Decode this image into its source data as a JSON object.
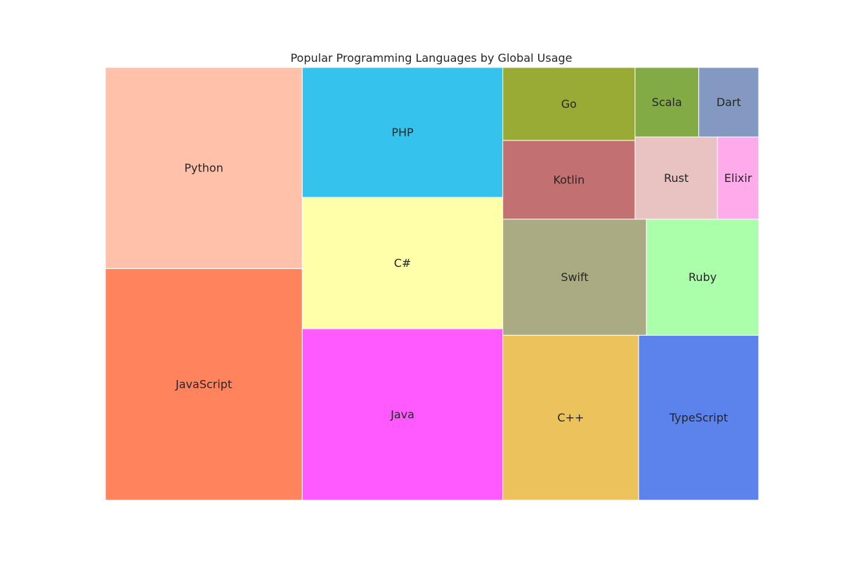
{
  "chart_data": {
    "type": "treemap",
    "title": "Popular Programming Languages by Global Usage",
    "items": [
      {
        "name": "JavaScript",
        "value": 17.5,
        "color": "#ff835c"
      },
      {
        "name": "Python",
        "value": 15.2,
        "color": "#ffc1aa"
      },
      {
        "name": "Java",
        "value": 13.2,
        "color": "#ff5aff"
      },
      {
        "name": "C#",
        "value": 10.1,
        "color": "#ffffaa"
      },
      {
        "name": "PHP",
        "value": 10.0,
        "color": "#35c2ec"
      },
      {
        "name": "C++",
        "value": 8.6,
        "color": "#ecc25c"
      },
      {
        "name": "TypeScript",
        "value": 7.6,
        "color": "#5c83ec"
      },
      {
        "name": "Swift",
        "value": 6.4,
        "color": "#abab83"
      },
      {
        "name": "Ruby",
        "value": 5.0,
        "color": "#abffab"
      },
      {
        "name": "Kotlin",
        "value": 4.0,
        "color": "#c27070"
      },
      {
        "name": "Go",
        "value": 3.7,
        "color": "#9aab35"
      },
      {
        "name": "Rust",
        "value": 2.6,
        "color": "#e9c2c2"
      },
      {
        "name": "Elixir",
        "value": 1.3,
        "color": "#ffaaeb"
      },
      {
        "name": "Scala",
        "value": 1.7,
        "color": "#83ab45"
      },
      {
        "name": "Dart",
        "value": 1.6,
        "color": "#8399c2"
      }
    ]
  }
}
